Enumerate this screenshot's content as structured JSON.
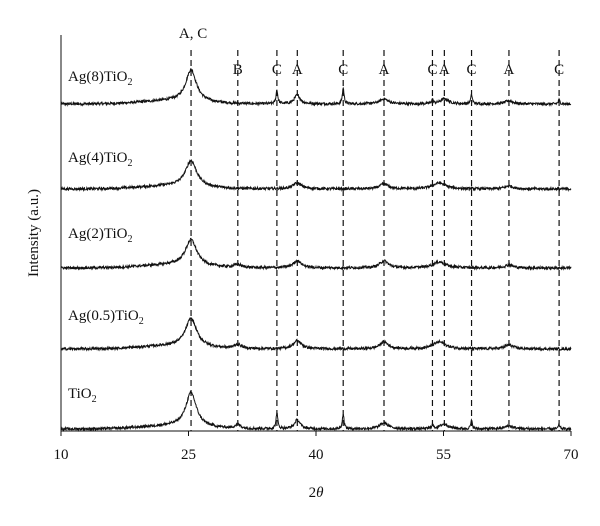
{
  "chart_data": {
    "type": "line",
    "xlabel": "2θ",
    "xlabel_main": "2",
    "xlabel_theta": "θ",
    "ylabel": "Intensity (a.u.)",
    "xlim": [
      10,
      70
    ],
    "x_ticks": [
      10,
      25,
      40,
      55,
      70
    ],
    "x_tick_labels": [
      "10",
      "25",
      "40",
      "55",
      "70"
    ],
    "grid": false,
    "reference_lines": [
      {
        "x": 25.3,
        "label": "A, C"
      },
      {
        "x": 30.8,
        "label": "B"
      },
      {
        "x": 35.4,
        "label": "C"
      },
      {
        "x": 37.8,
        "label": "A"
      },
      {
        "x": 43.2,
        "label": "C"
      },
      {
        "x": 48.0,
        "label": "A"
      },
      {
        "x": 53.7,
        "label": "C"
      },
      {
        "x": 55.1,
        "label": "A"
      },
      {
        "x": 58.3,
        "label": "C"
      },
      {
        "x": 62.7,
        "label": "A"
      },
      {
        "x": 68.6,
        "label": "C"
      }
    ],
    "series": [
      {
        "name": "Ag(8)TiO2",
        "name_main": "Ag(8)TiO",
        "name_sub": "2",
        "peaks": [
          {
            "x": 25.3,
            "h": 32,
            "w": 0.75
          },
          {
            "x": 35.4,
            "h": 14,
            "w": 0.12
          },
          {
            "x": 37.8,
            "h": 9,
            "w": 0.4
          },
          {
            "x": 43.2,
            "h": 16,
            "w": 0.12
          },
          {
            "x": 48.0,
            "h": 5,
            "w": 0.6
          },
          {
            "x": 53.7,
            "h": 4,
            "w": 0.12
          },
          {
            "x": 55.1,
            "h": 5,
            "w": 0.6
          },
          {
            "x": 58.3,
            "h": 9,
            "w": 0.12
          },
          {
            "x": 62.7,
            "h": 3,
            "w": 0.6
          },
          {
            "x": 68.6,
            "h": 4,
            "w": 0.12
          }
        ]
      },
      {
        "name": "Ag(4)TiO2",
        "name_main": "Ag(4)TiO",
        "name_sub": "2",
        "peaks": [
          {
            "x": 25.3,
            "h": 26,
            "w": 0.8
          },
          {
            "x": 37.8,
            "h": 6,
            "w": 0.6
          },
          {
            "x": 48.0,
            "h": 5,
            "w": 0.6
          },
          {
            "x": 54.5,
            "h": 6,
            "w": 0.9
          },
          {
            "x": 62.7,
            "h": 3,
            "w": 0.6
          }
        ]
      },
      {
        "name": "Ag(2)TiO2",
        "name_main": "Ag(2)TiO",
        "name_sub": "2",
        "peaks": [
          {
            "x": 25.3,
            "h": 26,
            "w": 0.8
          },
          {
            "x": 30.8,
            "h": 3,
            "w": 0.5
          },
          {
            "x": 37.8,
            "h": 7,
            "w": 0.6
          },
          {
            "x": 48.0,
            "h": 7,
            "w": 0.6
          },
          {
            "x": 54.5,
            "h": 6,
            "w": 0.9
          },
          {
            "x": 62.7,
            "h": 3,
            "w": 0.6
          }
        ]
      },
      {
        "name": "Ag(0.5)TiO2",
        "name_main": "Ag(0.5)TiO",
        "name_sub": "2",
        "peaks": [
          {
            "x": 25.3,
            "h": 28,
            "w": 0.8
          },
          {
            "x": 30.8,
            "h": 4,
            "w": 0.5
          },
          {
            "x": 37.8,
            "h": 8,
            "w": 0.6
          },
          {
            "x": 48.0,
            "h": 7,
            "w": 0.6
          },
          {
            "x": 54.5,
            "h": 7,
            "w": 0.9
          },
          {
            "x": 62.7,
            "h": 4,
            "w": 0.6
          }
        ]
      },
      {
        "name": "TiO2",
        "name_main": "TiO",
        "name_sub": "2",
        "peaks": [
          {
            "x": 25.3,
            "h": 34,
            "w": 0.75
          },
          {
            "x": 30.8,
            "h": 4,
            "w": 0.4
          },
          {
            "x": 35.4,
            "h": 16,
            "w": 0.12
          },
          {
            "x": 37.8,
            "h": 9,
            "w": 0.4
          },
          {
            "x": 43.2,
            "h": 15,
            "w": 0.12
          },
          {
            "x": 48.0,
            "h": 6,
            "w": 0.6
          },
          {
            "x": 53.7,
            "h": 4,
            "w": 0.12
          },
          {
            "x": 55.1,
            "h": 5,
            "w": 0.6
          },
          {
            "x": 58.3,
            "h": 8,
            "w": 0.12
          },
          {
            "x": 62.7,
            "h": 3,
            "w": 0.6
          },
          {
            "x": 68.6,
            "h": 4,
            "w": 0.12
          }
        ]
      }
    ]
  }
}
